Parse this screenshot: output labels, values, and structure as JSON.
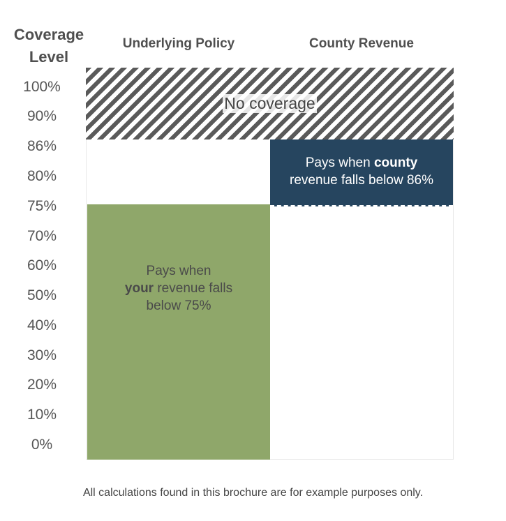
{
  "axis": {
    "title_line1": "Coverage",
    "title_line2": "Level",
    "ticks": [
      "100%",
      "90%",
      "86%",
      "80%",
      "75%",
      "70%",
      "60%",
      "50%",
      "40%",
      "30%",
      "20%",
      "10%",
      "0%"
    ]
  },
  "columns": {
    "col1": "Underlying Policy",
    "col2": "County Revenue"
  },
  "no_coverage": {
    "label": "No coverage",
    "from_level": 86,
    "to_level": 100
  },
  "underlying": {
    "line1": "Pays when",
    "bold": "your",
    "line2_rest": " revenue falls",
    "line3": "below 75%",
    "color": "#8fa76a",
    "level": 75
  },
  "county": {
    "line1_pre": "Pays when ",
    "bold": "county",
    "line2": "revenue falls below 86%",
    "color": "#26455f",
    "upper_level": 86,
    "lower_level": 75
  },
  "footnote": "All calculations found in this brochure are for example purposes only."
}
